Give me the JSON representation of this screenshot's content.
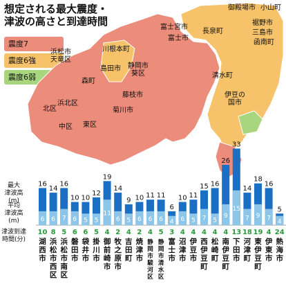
{
  "title": "想定される最大震度・\n津波の高さと到達時間",
  "legend": [
    {
      "label": "震度7",
      "color": "#ec8c7a"
    },
    {
      "label": "震度6強",
      "color": "#f6c36a"
    },
    {
      "label": "震度6弱",
      "color": "#a8d67e"
    }
  ],
  "row_labels": {
    "max": "最大\n津波高(m)",
    "avg": "平均\n津波高(m)",
    "time": "津波到達\n時間(分)"
  },
  "map_labels": [
    "御殿場市",
    "小山町",
    "富士宮市",
    "裾野市",
    "三島市",
    "函南町",
    "長泉町",
    "富士市",
    "川根本町",
    "浜松市\n天竜区",
    "島田市",
    "静岡市\n葵区",
    "清水町",
    "藤枝市",
    "森町",
    "伊豆の\n国市",
    "北区",
    "浜北区",
    "菊川市",
    "中区",
    "東区"
  ],
  "colors": {
    "shindo7": "#ec8c7a",
    "shindo6_strong": "#f6c36a",
    "shindo6_weak": "#a8d67e",
    "bar_max": "#1a6fc4",
    "bar_avg": "#8ec6ea",
    "time_text": "#2a9a3a"
  },
  "chart_data": {
    "type": "bar",
    "categories": [
      "湖西市",
      "浜松市西区",
      "浜松市南区",
      "磐田市",
      "袋井市",
      "掛川市",
      "御前崎市",
      "牧之原市",
      "吉田町",
      "焼津市",
      "静岡市駿河区",
      "静岡市清水区",
      "富士市",
      "沼津市",
      "伊豆市",
      "西伊豆町",
      "松崎町",
      "南伊豆町",
      "下田市",
      "河津町",
      "東伊豆町",
      "伊東市",
      "熱海市"
    ],
    "series": [
      {
        "name": "最大津波高(m)",
        "values": [
          16,
          14,
          16,
          10,
          10,
          12,
          19,
          14,
          9,
          10,
          11,
          11,
          6,
          10,
          11,
          15,
          16,
          26,
          33,
          14,
          18,
          16,
          5
        ]
      },
      {
        "name": "平均津波高(m)",
        "values": [
          6,
          6,
          7,
          6,
          5,
          5,
          11,
          6,
          5,
          6,
          6,
          6,
          4,
          6,
          5,
          7,
          5,
          9,
          15,
          7,
          9,
          7,
          4
        ]
      },
      {
        "name": "津波到達時間(分)",
        "values": [
          10,
          8,
          5,
          6,
          6,
          5,
          4,
          2,
          4,
          2,
          4,
          5,
          3,
          4,
          4,
          4,
          4,
          4,
          13,
          18,
          19,
          4,
          24
        ]
      }
    ]
  }
}
